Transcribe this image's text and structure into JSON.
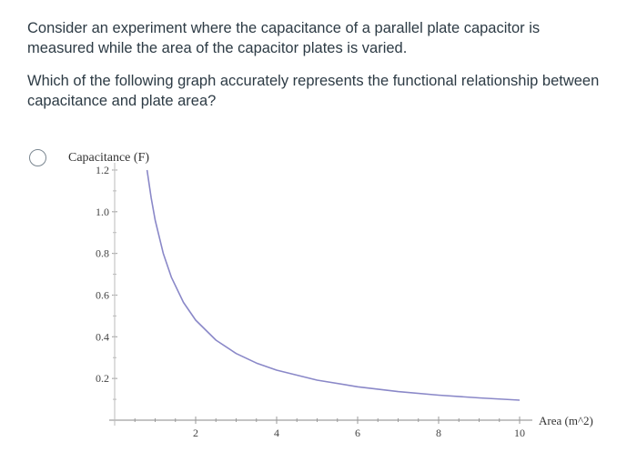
{
  "question": {
    "paragraph1": "Consider an experiment where the capacitance of a parallel plate capacitor is measured while the area of the capacitor plates is varied.",
    "paragraph2": "Which of the following graph accurately represents the functional relationship between capacitance and plate area?"
  },
  "option": {
    "selected": false
  },
  "chart_data": {
    "type": "line",
    "ylabel": "Capacitance (F)",
    "xlabel": "Area (m^2)",
    "xlim": [
      0,
      10
    ],
    "ylim": [
      0,
      1.2
    ],
    "x_ticks": [
      "2",
      "4",
      "6",
      "8",
      "10"
    ],
    "y_ticks": [
      "1.2",
      "1.0",
      "0.8",
      "0.6",
      "0.4",
      "0.2"
    ],
    "series": [
      {
        "color": "#8a88c8",
        "x": [
          0.8,
          0.9,
          1.0,
          1.2,
          1.4,
          1.7,
          2.0,
          2.5,
          3.0,
          3.5,
          4.0,
          5.0,
          6.0,
          7.0,
          8.0,
          9.0,
          10.0
        ],
        "y": [
          1.2,
          1.067,
          0.96,
          0.8,
          0.686,
          0.565,
          0.48,
          0.384,
          0.32,
          0.274,
          0.24,
          0.192,
          0.16,
          0.137,
          0.12,
          0.107,
          0.096
        ]
      }
    ]
  }
}
